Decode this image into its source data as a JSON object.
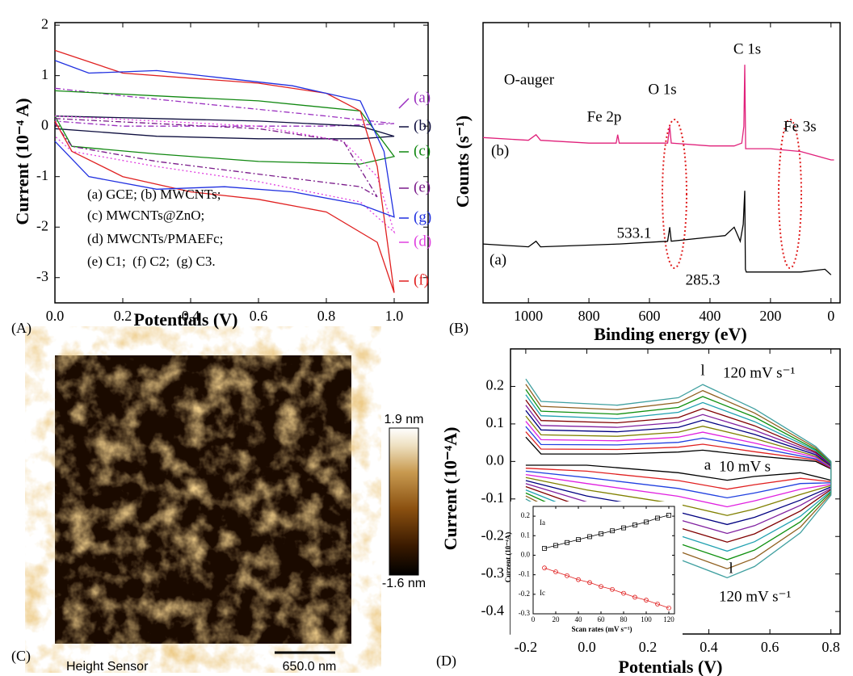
{
  "chart_data": [
    {
      "type": "line",
      "panel_label": "(A)",
      "xlabel": "Potentials (V)",
      "ylabel": "Current (10⁻⁴ A)",
      "xlim": [
        0,
        1.1
      ],
      "ylim": [
        -3.5,
        2.05
      ],
      "xticks": [
        {
          "value": 0,
          "label": "0.0"
        },
        0.2,
        0.4,
        0.6,
        0.8,
        {
          "value": 1,
          "label": "1.0"
        }
      ],
      "yticks": [
        -3,
        -2,
        -1,
        0,
        1,
        2
      ],
      "annotations": [
        "(a) GCE; (b) MWCNTs;",
        "(c) MWCNTs@ZnO;",
        "(d) MWCNTs/PMAEFc;",
        "(e) C1;  (f) C2;  (g) C3."
      ],
      "series": [
        {
          "name": "(a)",
          "color": "#9b30c0",
          "style": "dashdot",
          "x": [
            0,
            0.2,
            0.5,
            0.8,
            1.0,
            0.8,
            0.5,
            0.2,
            0
          ],
          "values": [
            0.75,
            0.6,
            0.4,
            0.2,
            0.05,
            0.0,
            0.0,
            0.0,
            0.1
          ]
        },
        {
          "name": "(b)",
          "color": "#101040",
          "style": "solid",
          "x": [
            0,
            0.3,
            0.6,
            0.9,
            1.0,
            0.9,
            0.6,
            0.3,
            0
          ],
          "values": [
            0.2,
            0.15,
            0.1,
            0.0,
            -0.2,
            -0.25,
            -0.25,
            -0.2,
            -0.05
          ]
        },
        {
          "name": "(c)",
          "color": "#118811",
          "style": "solid",
          "x": [
            0,
            0.3,
            0.6,
            0.9,
            1.0,
            0.9,
            0.6,
            0.3,
            0.05,
            0
          ],
          "values": [
            0.7,
            0.6,
            0.5,
            0.3,
            -0.6,
            -0.75,
            -0.7,
            -0.55,
            -0.4,
            0.2
          ]
        },
        {
          "name": "(d)",
          "color": "#e040e0",
          "style": "dotted",
          "x": [
            0,
            0.3,
            0.6,
            0.85,
            0.95,
            1.0,
            0.9,
            0.6,
            0.3,
            0.05,
            0
          ],
          "values": [
            0.2,
            0.1,
            0.0,
            -0.3,
            -1.0,
            -2.1,
            -1.5,
            -1.1,
            -0.8,
            -0.5,
            -0.2
          ]
        },
        {
          "name": "(e)",
          "color": "#7a1a8a",
          "style": "dashdot",
          "x": [
            0,
            0.3,
            0.6,
            0.85,
            0.95,
            0.9,
            0.6,
            0.3,
            0.05,
            0
          ],
          "values": [
            0.15,
            0.05,
            -0.05,
            -0.3,
            -1.4,
            -1.2,
            -0.95,
            -0.7,
            -0.4,
            0.05
          ]
        },
        {
          "name": "(f)",
          "color": "#e02020",
          "style": "solid",
          "x": [
            0,
            0.2,
            0.4,
            0.6,
            0.8,
            0.9,
            0.95,
            1.0,
            0.95,
            0.8,
            0.6,
            0.4,
            0.2,
            0.05,
            0
          ],
          "values": [
            1.5,
            1.05,
            0.95,
            0.85,
            0.65,
            0.3,
            -0.8,
            -3.3,
            -2.3,
            -1.7,
            -1.45,
            -1.3,
            -1.0,
            -0.5,
            0.1
          ]
        },
        {
          "name": "(g)",
          "color": "#2030e0",
          "style": "solid",
          "x": [
            0,
            0.1,
            0.3,
            0.5,
            0.7,
            0.9,
            0.97,
            1.0,
            0.9,
            0.7,
            0.5,
            0.3,
            0.1,
            0
          ],
          "values": [
            1.3,
            1.05,
            1.1,
            0.95,
            0.8,
            0.5,
            -0.5,
            -1.8,
            -1.55,
            -1.3,
            -1.2,
            -1.25,
            -1.0,
            -0.3
          ]
        }
      ]
    },
    {
      "type": "line",
      "panel_label": "(B)",
      "xlabel": "Binding energy (eV)",
      "ylabel": "Counts (s⁻¹)",
      "xlim": [
        1150,
        -30
      ],
      "ylim": [
        0,
        100
      ],
      "xticks": [
        1000,
        800,
        600,
        400,
        200,
        0
      ],
      "annotations": [
        "O-auger",
        "Fe 2p",
        "O 1s",
        "C 1s",
        "Fe 3s",
        "(b)",
        "(a)",
        "533.1",
        "285.3"
      ],
      "series": [
        {
          "color": "#e0207a",
          "style": "solid",
          "x": [
            1150,
            1000,
            975,
            960,
            800,
            710,
            705,
            700,
            540,
            533,
            528,
            400,
            320,
            295,
            288,
            285,
            282,
            278,
            200,
            100,
            0,
            -10
          ],
          "values": [
            59,
            58,
            60,
            58,
            57,
            57,
            60,
            57,
            57,
            63,
            57,
            56,
            56,
            57,
            63,
            85,
            55,
            55,
            55,
            54,
            51,
            51
          ]
        },
        {
          "color": "#000000",
          "style": "solid",
          "x": [
            1150,
            1000,
            975,
            960,
            700,
            540,
            533,
            528,
            350,
            320,
            300,
            290,
            285,
            283,
            280,
            200,
            100,
            20,
            0
          ],
          "values": [
            21,
            20,
            22,
            20,
            21,
            22,
            27,
            22,
            24,
            27,
            22,
            28,
            40,
            12,
            11,
            11,
            11,
            12,
            10
          ]
        }
      ]
    },
    {
      "type": "line",
      "panel_label": "(D)",
      "xlabel": "Potentials (V)",
      "ylabel": "Current (10⁻⁴A)",
      "xlim": [
        -0.25,
        0.83
      ],
      "ylim": [
        -0.46,
        0.3
      ],
      "xticks": [
        -0.2,
        {
          "value": 0,
          "label": "0.0"
        },
        0.2,
        0.4,
        0.6,
        0.8
      ],
      "yticks": [
        -0.4,
        -0.3,
        -0.2,
        -0.1,
        {
          "value": 0,
          "label": "0.0"
        },
        0.1,
        0.2
      ],
      "annotations": [
        "l",
        "120 mV s⁻¹",
        "a",
        "10 mV s",
        "l",
        "120 mV s⁻¹"
      ],
      "x": [
        -0.2,
        -0.15,
        0.1,
        0.3,
        0.38,
        0.55,
        0.75,
        0.8,
        0.8,
        0.7,
        0.55,
        0.46,
        0.3,
        0.0,
        -0.2
      ],
      "series": [
        {
          "color": "#000000",
          "values": [
            0.065,
            0.02,
            0.02,
            0.025,
            0.03,
            0.015,
            0,
            -0.02,
            -0.05,
            -0.03,
            -0.04,
            -0.05,
            -0.03,
            -0.01,
            -0.01
          ]
        },
        {
          "color": "#e02020",
          "values": [
            0.079,
            0.033,
            0.032,
            0.038,
            0.046,
            0.026,
            0.004,
            -0.018,
            -0.054,
            -0.045,
            -0.062,
            -0.074,
            -0.051,
            -0.026,
            -0.018
          ]
        },
        {
          "color": "#2040e0",
          "values": [
            0.093,
            0.045,
            0.044,
            0.051,
            0.062,
            0.038,
            0.007,
            -0.016,
            -0.057,
            -0.059,
            -0.084,
            -0.097,
            -0.072,
            -0.043,
            -0.026
          ]
        },
        {
          "color": "#e020e0",
          "values": [
            0.107,
            0.058,
            0.055,
            0.065,
            0.078,
            0.049,
            0.011,
            -0.015,
            -0.061,
            -0.074,
            -0.105,
            -0.121,
            -0.093,
            -0.059,
            -0.035
          ]
        },
        {
          "color": "#808000",
          "values": [
            0.121,
            0.071,
            0.067,
            0.078,
            0.094,
            0.061,
            0.014,
            -0.013,
            -0.064,
            -0.088,
            -0.127,
            -0.144,
            -0.114,
            -0.076,
            -0.043
          ]
        },
        {
          "color": "#000080",
          "values": [
            0.136,
            0.084,
            0.079,
            0.091,
            0.11,
            0.072,
            0.018,
            -0.011,
            -0.068,
            -0.103,
            -0.149,
            -0.168,
            -0.135,
            -0.092,
            -0.051
          ]
        },
        {
          "color": "#8020a0",
          "values": [
            0.15,
            0.096,
            0.091,
            0.104,
            0.125,
            0.083,
            0.022,
            -0.009,
            -0.072,
            -0.117,
            -0.171,
            -0.192,
            -0.155,
            -0.108,
            -0.059
          ]
        },
        {
          "color": "#800000",
          "values": [
            0.164,
            0.109,
            0.103,
            0.117,
            0.141,
            0.095,
            0.025,
            -0.007,
            -0.075,
            -0.132,
            -0.193,
            -0.215,
            -0.176,
            -0.125,
            -0.067
          ]
        },
        {
          "color": "#20a0b0",
          "values": [
            0.178,
            0.122,
            0.114,
            0.131,
            0.157,
            0.106,
            0.029,
            -0.006,
            -0.079,
            -0.146,
            -0.214,
            -0.239,
            -0.197,
            -0.141,
            -0.076
          ]
        },
        {
          "color": "#109010",
          "values": [
            0.192,
            0.134,
            0.126,
            0.144,
            0.173,
            0.118,
            0.032,
            -0.004,
            -0.082,
            -0.161,
            -0.236,
            -0.262,
            -0.218,
            -0.158,
            -0.084
          ]
        },
        {
          "color": "#906020",
          "values": [
            0.206,
            0.147,
            0.138,
            0.157,
            0.189,
            0.129,
            0.036,
            -0.002,
            -0.086,
            -0.175,
            -0.258,
            -0.286,
            -0.239,
            -0.174,
            -0.092
          ]
        },
        {
          "color": "#40a0a0",
          "values": [
            0.22,
            0.16,
            0.15,
            0.17,
            0.205,
            0.14,
            0.04,
            0,
            -0.09,
            -0.19,
            -0.28,
            -0.31,
            -0.26,
            -0.19,
            -0.1
          ]
        }
      ]
    },
    {
      "type": "scatter",
      "xlabel": "Scan rates (mV s⁻¹)",
      "ylabel": "Current (10⁻⁴A)",
      "xlim": [
        0,
        125
      ],
      "ylim": [
        -0.3,
        0.25
      ],
      "xticks": [
        0,
        20,
        40,
        60,
        80,
        100,
        120
      ],
      "yticks": [
        -0.3,
        -0.2,
        -0.1,
        {
          "value": 0,
          "label": "0.0"
        },
        0.1,
        0.2
      ],
      "annotations": [
        "Ia",
        "Ic"
      ],
      "x": [
        10,
        20,
        30,
        40,
        50,
        60,
        70,
        80,
        90,
        100,
        110,
        120
      ],
      "series": [
        {
          "color": "#000000",
          "marker": "square",
          "values": [
            0.035,
            0.05,
            0.065,
            0.08,
            0.095,
            0.11,
            0.125,
            0.14,
            0.155,
            0.17,
            0.19,
            0.205
          ]
        },
        {
          "color": "#e02020",
          "marker": "circle",
          "values": [
            -0.065,
            -0.085,
            -0.105,
            -0.125,
            -0.14,
            -0.16,
            -0.175,
            -0.195,
            -0.215,
            -0.23,
            -0.25,
            -0.27
          ]
        }
      ]
    }
  ],
  "image_panel": {
    "panel_label": "(C)",
    "caption": "Height Sensor",
    "scale_bar": "650.0 nm",
    "colorbar_max": "1.9 nm",
    "colorbar_min": "-1.6 nm"
  }
}
